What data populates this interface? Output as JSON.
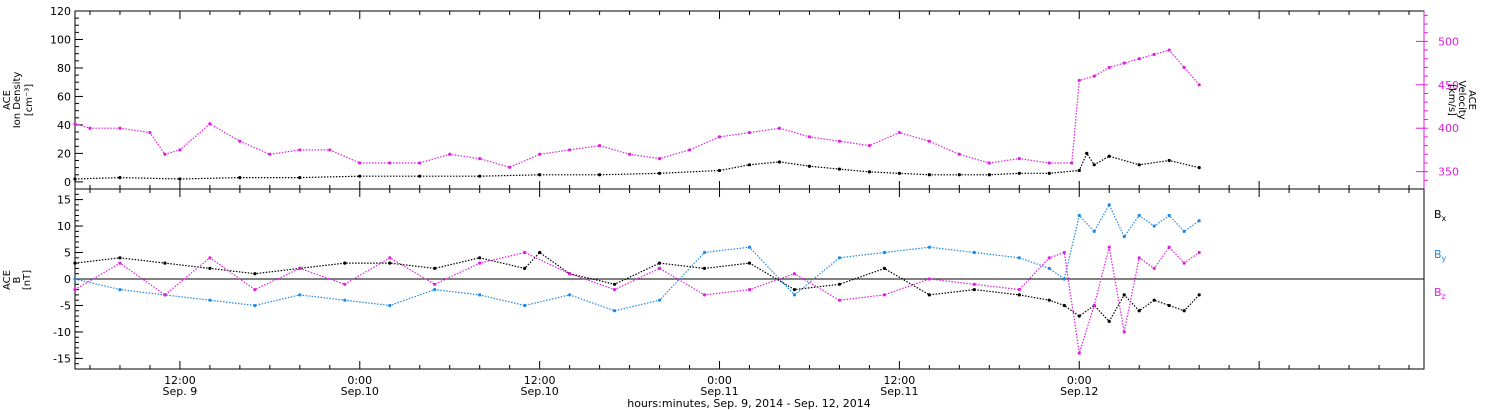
{
  "chart_data": [
    {
      "type": "scatter",
      "panel": "top",
      "left_axis": {
        "label_lines": [
          "ACE",
          "Ion Density",
          "[cm⁻³]"
        ],
        "ylim": [
          -5,
          120
        ],
        "ticks": [
          "0",
          "20",
          "40",
          "60",
          "80",
          "100",
          "120"
        ]
      },
      "right_axis": {
        "label_lines": [
          "ACE",
          "Velocity",
          "[km/s]"
        ],
        "ylim": [
          330,
          535
        ],
        "ticks": [
          "350",
          "400",
          "450",
          "500"
        ],
        "color": "#e01ee0"
      },
      "series": [
        {
          "key": "density",
          "axis": "left",
          "color": "#000000",
          "x_hours": [
            5,
            8,
            12,
            16,
            20,
            24,
            28,
            32,
            36,
            40,
            44,
            48,
            50,
            52,
            54,
            56,
            58,
            60,
            62,
            64,
            66,
            68,
            70,
            72,
            72.5,
            73,
            74,
            76,
            78,
            80
          ],
          "values": [
            2,
            3,
            2,
            3,
            3,
            4,
            4,
            4,
            5,
            5,
            6,
            8,
            12,
            14,
            11,
            9,
            7,
            6,
            5,
            5,
            5,
            6,
            6,
            8,
            20,
            12,
            18,
            12,
            15,
            10
          ]
        },
        {
          "key": "velocity",
          "axis": "right",
          "color": "#e01ee0",
          "x_hours": [
            5,
            6,
            8,
            10,
            11,
            12,
            14,
            16,
            18,
            20,
            22,
            24,
            26,
            28,
            30,
            32,
            34,
            36,
            38,
            40,
            42,
            44,
            46,
            48,
            50,
            52,
            54,
            56,
            58,
            60,
            62,
            64,
            66,
            68,
            70,
            71.5,
            72,
            73,
            74,
            75,
            76,
            77,
            78,
            79,
            80
          ],
          "values": [
            405,
            400,
            400,
            395,
            370,
            375,
            405,
            385,
            370,
            375,
            375,
            360,
            360,
            360,
            370,
            365,
            355,
            370,
            375,
            380,
            370,
            365,
            375,
            390,
            395,
            400,
            390,
            385,
            380,
            395,
            385,
            370,
            360,
            365,
            360,
            360,
            455,
            460,
            470,
            475,
            480,
            485,
            490,
            470,
            450
          ]
        }
      ]
    },
    {
      "type": "scatter",
      "panel": "bottom",
      "left_axis": {
        "label_lines": [
          "ACE",
          "B",
          "[nT]"
        ],
        "ylim": [
          -17,
          17
        ],
        "ticks": [
          "-15",
          "-10",
          "-5",
          "0",
          "5",
          "10",
          "15"
        ]
      },
      "series": [
        {
          "name": "Bx",
          "color": "#000000",
          "x_hours": [
            5,
            8,
            11,
            14,
            17,
            20,
            23,
            26,
            29,
            32,
            35,
            36,
            38,
            41,
            44,
            47,
            50,
            53,
            56,
            59,
            62,
            65,
            68,
            70,
            71,
            72,
            73,
            74,
            75,
            76,
            77,
            78,
            79,
            80
          ],
          "values": [
            3,
            4,
            3,
            2,
            1,
            2,
            3,
            3,
            2,
            4,
            2,
            5,
            1,
            -1,
            3,
            2,
            3,
            -2,
            -1,
            2,
            -3,
            -2,
            -3,
            -4,
            -5,
            -7,
            -5,
            -8,
            -3,
            -6,
            -4,
            -5,
            -6,
            -3
          ]
        },
        {
          "name": "By",
          "color": "#1e88e5",
          "x_hours": [
            5,
            8,
            11,
            14,
            17,
            20,
            23,
            26,
            29,
            32,
            35,
            38,
            41,
            44,
            47,
            50,
            53,
            56,
            59,
            62,
            65,
            68,
            70,
            71,
            72,
            73,
            74,
            75,
            76,
            77,
            78,
            79,
            80
          ],
          "values": [
            0,
            -2,
            -3,
            -4,
            -5,
            -3,
            -4,
            -5,
            -2,
            -3,
            -5,
            -3,
            -6,
            -4,
            5,
            6,
            -3,
            4,
            5,
            6,
            5,
            4,
            2,
            0,
            12,
            9,
            14,
            8,
            12,
            10,
            12,
            9,
            11
          ]
        },
        {
          "name": "Bz",
          "color": "#e01ee0",
          "x_hours": [
            5,
            8,
            11,
            14,
            17,
            20,
            23,
            26,
            29,
            32,
            35,
            38,
            41,
            44,
            47,
            50,
            53,
            56,
            59,
            62,
            65,
            68,
            70,
            71,
            72,
            73,
            74,
            75,
            76,
            77,
            78,
            79,
            80
          ],
          "values": [
            -2,
            3,
            -3,
            4,
            -2,
            2,
            -1,
            4,
            -1,
            3,
            5,
            1,
            -2,
            2,
            -3,
            -2,
            1,
            -4,
            -3,
            0,
            -1,
            -2,
            4,
            5,
            -14,
            -5,
            6,
            -10,
            4,
            2,
            6,
            3,
            5
          ]
        }
      ]
    }
  ],
  "x_axis": {
    "label": "hours:minutes, Sep.  9, 2014 - Sep. 12, 2014",
    "range_hours": [
      5,
      95
    ],
    "major_ticks": [
      {
        "h": 12,
        "time": "12:00",
        "date": "Sep. 9"
      },
      {
        "h": 24,
        "time": "0:00",
        "date": "Sep.10"
      },
      {
        "h": 36,
        "time": "12:00",
        "date": "Sep.10"
      },
      {
        "h": 48,
        "time": "0:00",
        "date": "Sep.11"
      },
      {
        "h": 60,
        "time": "12:00",
        "date": "Sep.11"
      },
      {
        "h": 72,
        "time": "0:00",
        "date": "Sep.12"
      }
    ]
  },
  "legend": {
    "position": "right",
    "items": [
      {
        "label": "B",
        "sub": "x",
        "color": "#000000"
      },
      {
        "label": "B",
        "sub": "y",
        "color": "#1e88e5"
      },
      {
        "label": "B",
        "sub": "z",
        "color": "#e01ee0"
      }
    ]
  }
}
